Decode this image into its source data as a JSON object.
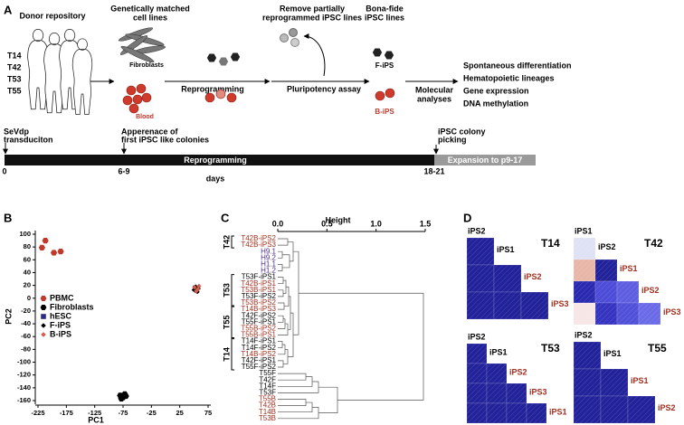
{
  "panel_labels": [
    "A",
    "B",
    "C",
    "D"
  ],
  "panel_a": {
    "donor_title": "Donor repository",
    "donors": [
      "T14",
      "T42",
      "T53",
      "T55"
    ],
    "cell_lines_title": [
      "Genetically matched",
      "cell lines"
    ],
    "fibroblasts": "Fibroblasts",
    "blood": "Blood",
    "reprogramming": "Reprogramming",
    "remove_title": [
      "Remove partially",
      "reprogrammed iPSC lines"
    ],
    "pluripotency": "Pluripotency assay",
    "bona_fide_title": [
      "Bona-fide",
      "iPSC lines"
    ],
    "f_ips": "F-iPS",
    "b_ips": "B-iPS",
    "molecular": [
      "Molecular",
      "analyses"
    ],
    "outcomes": [
      "Spontaneous differentiation",
      "Hematopoietic lineages",
      "Gene expression",
      "DNA methylation"
    ]
  },
  "timeline": {
    "events": [
      [
        "SeVdp",
        "transduciton"
      ],
      [
        "Apperenace of",
        "first iPSC like colonies"
      ],
      [
        "iPSC colony",
        "picking"
      ]
    ],
    "phases": [
      "Reprogramming",
      "Expansion to p9-17"
    ],
    "day_marks": [
      "0",
      "6-9",
      "18-21"
    ],
    "unit": "days"
  },
  "chart_data": [
    {
      "type": "scatter",
      "xlabel": "PC1",
      "ylabel": "PC2",
      "xlim": [
        -225,
        75
      ],
      "ylim": [
        -160,
        100
      ],
      "xticks": [
        -225,
        -175,
        -125,
        -75,
        -25,
        25,
        75
      ],
      "yticks": [
        100,
        80,
        60,
        40,
        20,
        0,
        -20,
        -40,
        -60,
        -80,
        -100,
        -120,
        -140,
        -160
      ],
      "legend": "left",
      "series": [
        {
          "name": "PBMC",
          "color": "#c0392b",
          "marker": "hexagon",
          "x": [
            -212,
            -218,
            -197,
            -185
          ],
          "y": [
            90,
            79,
            71,
            73
          ]
        },
        {
          "name": "Fibroblasts",
          "color": "#000000",
          "marker": "hexagon",
          "x": [
            -80,
            -75,
            -72,
            -70,
            -78
          ],
          "y": [
            -152,
            -155,
            -150,
            -153,
            -157
          ]
        },
        {
          "name": "hESC",
          "color": "#2a2a8a",
          "marker": "square",
          "x": [
            52,
            55
          ],
          "y": [
            16,
            12
          ]
        },
        {
          "name": "F-iPS",
          "color": "#000000",
          "marker": "diamond",
          "x": [
            50,
            53,
            56,
            58
          ],
          "y": [
            13,
            18,
            10,
            15
          ]
        },
        {
          "name": "B-iPS",
          "color": "#d35f4a",
          "marker": "diamond",
          "x": [
            51,
            54,
            57,
            59
          ],
          "y": [
            17,
            11,
            14,
            19
          ]
        }
      ]
    },
    {
      "type": "dendrogram",
      "xlabel": "Height",
      "xlim": [
        0,
        1.5
      ],
      "xticks": [
        {
          "value": 0,
          "label": "0.0"
        },
        0.5,
        {
          "value": 1,
          "label": "1.0"
        },
        1.5
      ],
      "leaves": [
        "T42B-iPS2",
        "T42B-iPS3",
        "H9.1",
        "H9.2",
        "H1.1",
        "H1.2",
        "T53F-iPS1",
        "T42B-iPS1",
        "T53B-iPS1",
        "T53F-iPS2",
        "T53B-iPS2",
        "T14B-iPS3",
        "T42F-iPS2",
        "T55F-iPS1",
        "T55B-iPS2",
        "T55B-iPS1",
        "T14F-iPS1",
        "T14F-iPS2",
        "T14B-iPS2",
        "T42F-iPS1",
        "T55F-iPS2",
        "T55F",
        "T42F",
        "T14F",
        "T53F",
        "T55B",
        "T42B",
        "T14B",
        "T53B"
      ],
      "leaf_colors": [
        "#a03020",
        "#a03020",
        "#4a2a8a",
        "#4a2a8a",
        "#4a2a8a",
        "#4a2a8a",
        "#000000",
        "#a03020",
        "#a03020",
        "#000000",
        "#a03020",
        "#a03020",
        "#000000",
        "#000000",
        "#a03020",
        "#a03020",
        "#000000",
        "#000000",
        "#a03020",
        "#000000",
        "#000000",
        "#000000",
        "#000000",
        "#000000",
        "#000000",
        "#a03020",
        "#a03020",
        "#a03020",
        "#a03020"
      ],
      "groups": [
        "T42",
        "T53",
        "T55",
        "T14"
      ]
    }
  ],
  "panel_d": {
    "heatmaps": [
      {
        "title": "T14",
        "top_label": "iPS2",
        "row_labels": [
          "iPS1",
          "iPS2",
          "iPS3"
        ],
        "label_colors": [
          "#000000",
          "#a03020",
          "#a03020"
        ],
        "cell_colors": [
          [
            "#22229a"
          ],
          [
            "#22229a",
            "#22229a"
          ],
          [
            "#22229a",
            "#22229a",
            "#22229a"
          ]
        ]
      },
      {
        "title": "T42",
        "top_label": "iPS1",
        "row_labels": [
          "iPS2",
          "iPS1",
          "iPS2",
          "iPS3"
        ],
        "label_colors": [
          "#000000",
          "#a03020",
          "#a03020",
          "#a03020"
        ],
        "cell_colors": [
          [
            "#dfe2f5"
          ],
          [
            "#e8b6a8",
            "#22229a"
          ],
          [
            "#2a2ab0",
            "#4c4cd8",
            "#5e5ee0"
          ],
          [
            "#f6e6e6",
            "#3434c0",
            "#5050d8",
            "#6a6ae6"
          ]
        ]
      },
      {
        "title": "T53",
        "top_label": "iPS2",
        "row_labels": [
          "iPS1",
          "iPS2",
          "iPS3",
          "iPS1"
        ],
        "label_colors": [
          "#000000",
          "#a03020",
          "#a03020",
          "#a03020"
        ],
        "cell_colors": [
          [
            "#22229a"
          ],
          [
            "#22229a",
            "#22229a"
          ],
          [
            "#22229a",
            "#22229a",
            "#22229a"
          ],
          [
            "#22229a",
            "#22229a",
            "#22229a",
            "#22229a"
          ]
        ]
      },
      {
        "title": "T55",
        "top_label": "iPS2",
        "row_labels": [
          "iPS1",
          "iPS1",
          "iPS2"
        ],
        "label_colors": [
          "#000000",
          "#a03020",
          "#a03020"
        ],
        "cell_colors": [
          [
            "#22229a"
          ],
          [
            "#22229a",
            "#22229a"
          ],
          [
            "#22229a",
            "#22229a",
            "#22229a"
          ]
        ]
      }
    ]
  }
}
